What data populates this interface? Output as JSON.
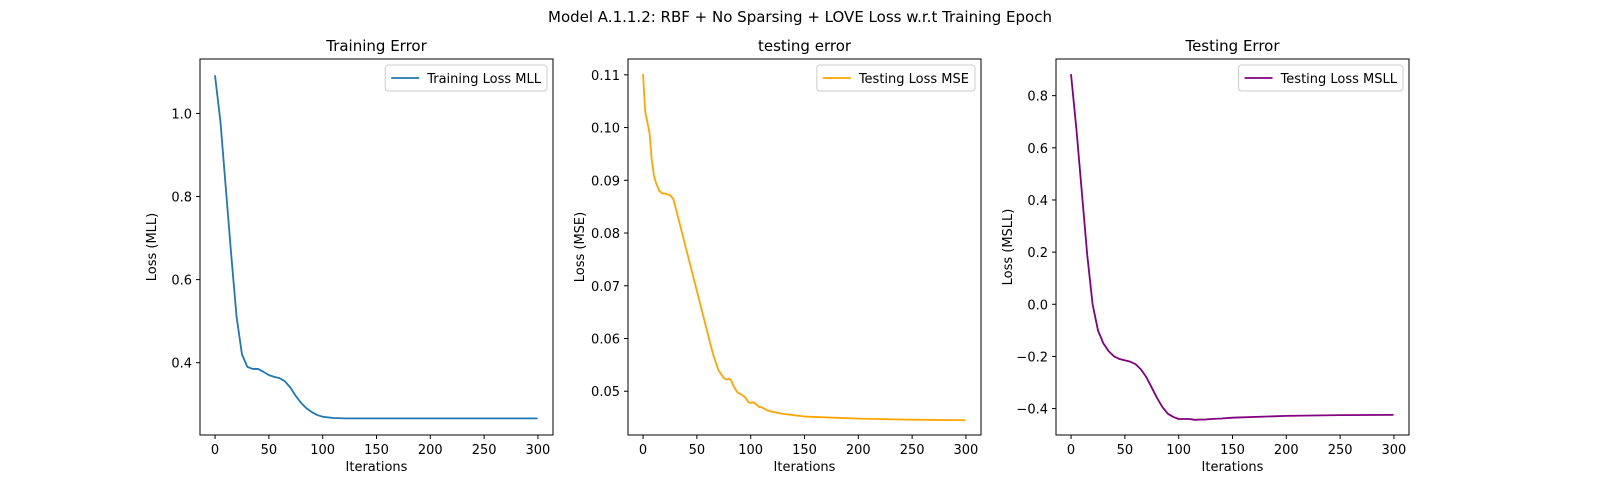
{
  "figure": {
    "suptitle": "Model A.1.1.2: RBF + No Sparsing + LOVE Loss w.r.t Training Epoch"
  },
  "chart_data": [
    {
      "type": "line",
      "title": "Training Error",
      "xlabel": "Iterations",
      "ylabel": "Loss (MLL)",
      "xlim": [
        -14,
        314
      ],
      "ylim": [
        0.226,
        1.131
      ],
      "xticks": [
        0,
        50,
        100,
        150,
        200,
        250,
        300
      ],
      "yticks": [
        0.4,
        0.6,
        0.8,
        1.0
      ],
      "ytick_labels": [
        "0.4",
        "0.6",
        "0.8",
        "1.0"
      ],
      "grid": false,
      "legend_position": "top-right",
      "series": [
        {
          "name": "Training Loss MLL",
          "color": "#1f77b4",
          "x": [
            0,
            5,
            10,
            15,
            20,
            25,
            30,
            35,
            40,
            45,
            50,
            55,
            60,
            65,
            70,
            75,
            80,
            85,
            90,
            95,
            100,
            110,
            120,
            130,
            150,
            200,
            250,
            299
          ],
          "y": [
            1.09,
            0.98,
            0.82,
            0.66,
            0.51,
            0.42,
            0.39,
            0.385,
            0.385,
            0.378,
            0.37,
            0.366,
            0.363,
            0.355,
            0.34,
            0.32,
            0.303,
            0.29,
            0.281,
            0.274,
            0.27,
            0.267,
            0.266,
            0.266,
            0.266,
            0.266,
            0.266,
            0.266
          ]
        }
      ]
    },
    {
      "type": "line",
      "title": "testing error",
      "xlabel": "Iterations",
      "ylabel": "Loss (MSE)",
      "xlim": [
        -14,
        314
      ],
      "ylim": [
        0.0417,
        0.113
      ],
      "xticks": [
        0,
        50,
        100,
        150,
        200,
        250,
        300
      ],
      "yticks": [
        0.05,
        0.06,
        0.07,
        0.08,
        0.09,
        0.1,
        0.11
      ],
      "ytick_labels": [
        "0.05",
        "0.06",
        "0.07",
        "0.08",
        "0.09",
        "0.10",
        "0.11"
      ],
      "grid": false,
      "legend_position": "top-right",
      "series": [
        {
          "name": "Testing Loss MSE",
          "color": "#ffa500",
          "x": [
            0,
            2,
            4,
            6,
            8,
            10,
            12,
            15,
            18,
            20,
            25,
            28,
            30,
            35,
            40,
            45,
            50,
            55,
            60,
            65,
            70,
            75,
            78,
            80,
            82,
            84,
            86,
            88,
            90,
            92,
            95,
            98,
            100,
            103,
            105,
            108,
            110,
            115,
            120,
            125,
            130,
            150,
            200,
            250,
            299
          ],
          "y": [
            0.11,
            0.103,
            0.101,
            0.099,
            0.094,
            0.091,
            0.0895,
            0.088,
            0.0875,
            0.0875,
            0.0872,
            0.0865,
            0.085,
            0.081,
            0.077,
            0.073,
            0.069,
            0.065,
            0.061,
            0.057,
            0.054,
            0.0525,
            0.0522,
            0.0524,
            0.052,
            0.051,
            0.0503,
            0.0497,
            0.0495,
            0.0493,
            0.0488,
            0.0479,
            0.0478,
            0.0479,
            0.0475,
            0.047,
            0.047,
            0.0464,
            0.0461,
            0.0459,
            0.0457,
            0.0452,
            0.0448,
            0.0446,
            0.0445
          ]
        }
      ]
    },
    {
      "type": "line",
      "title": "Testing Error",
      "xlabel": "Iterations",
      "ylabel": "Loss (MSLL)",
      "xlim": [
        -14,
        314
      ],
      "ylim": [
        -0.5013,
        0.9406
      ],
      "xticks": [
        0,
        50,
        100,
        150,
        200,
        250,
        300
      ],
      "yticks": [
        -0.4,
        -0.2,
        0.0,
        0.2,
        0.4,
        0.6,
        0.8
      ],
      "ytick_labels": [
        "−0.4",
        "−0.2",
        "0.0",
        "0.2",
        "0.4",
        "0.6",
        "0.8"
      ],
      "grid": false,
      "legend_position": "top-right",
      "series": [
        {
          "name": "Testing Loss MSLL",
          "color": "#800080",
          "x": [
            0,
            5,
            10,
            15,
            20,
            25,
            30,
            35,
            40,
            45,
            50,
            55,
            60,
            65,
            70,
            75,
            80,
            85,
            90,
            95,
            100,
            105,
            110,
            115,
            120,
            125,
            130,
            140,
            150,
            200,
            250,
            299
          ],
          "y": [
            0.88,
            0.67,
            0.43,
            0.19,
            0.0,
            -0.1,
            -0.15,
            -0.18,
            -0.2,
            -0.21,
            -0.215,
            -0.22,
            -0.23,
            -0.25,
            -0.28,
            -0.32,
            -0.36,
            -0.395,
            -0.42,
            -0.432,
            -0.44,
            -0.44,
            -0.44,
            -0.443,
            -0.442,
            -0.442,
            -0.44,
            -0.438,
            -0.435,
            -0.428,
            -0.425,
            -0.424
          ]
        }
      ]
    }
  ]
}
